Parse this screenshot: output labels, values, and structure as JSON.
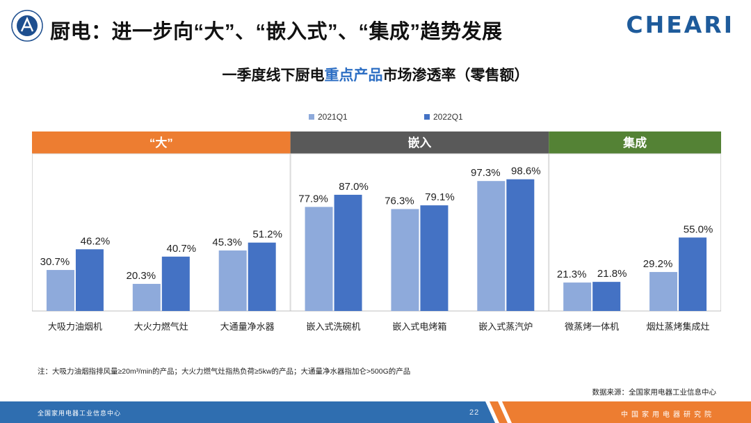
{
  "header": {
    "title": "厨电：进一步向“大”、“嵌入式”、“集成”趋势发展",
    "brand": "CHEARI"
  },
  "chart_title": {
    "part1": "一季度线下厨电",
    "highlight": "重点产品",
    "part2": "市场渗透率（零售额）"
  },
  "colors": {
    "series_2021": "#8eaadb",
    "series_2022": "#4472c4",
    "group_big": "#ed7d31",
    "group_embed": "#595959",
    "group_integrated": "#548235",
    "title_highlight": "#2e6fc4",
    "footer_blue": "#2f6eb0",
    "footer_orange": "#ed7d31"
  },
  "chart_data": {
    "type": "bar",
    "title": "一季度线下厨电重点产品市场渗透率（零售额）",
    "ylim": [
      0,
      100
    ],
    "legend_position": "top-center",
    "groups": [
      {
        "name": "“大”",
        "categories": [
          "大吸力油烟机",
          "大火力燃气灶",
          "大通量净水器"
        ]
      },
      {
        "name": "嵌入",
        "categories": [
          "嵌入式洗碗机",
          "嵌入式电烤箱",
          "嵌入式蒸汽炉"
        ]
      },
      {
        "name": "集成",
        "categories": [
          "微蒸烤一体机",
          "烟灶蒸烤集成灶"
        ]
      }
    ],
    "categories": [
      "大吸力油烟机",
      "大火力燃气灶",
      "大通量净水器",
      "嵌入式洗碗机",
      "嵌入式电烤箱",
      "嵌入式蒸汽炉",
      "微蒸烤一体机",
      "烟灶蒸烤集成灶"
    ],
    "series": [
      {
        "name": "2021Q1",
        "values": [
          30.7,
          20.3,
          45.3,
          77.9,
          76.3,
          97.3,
          21.3,
          29.2
        ]
      },
      {
        "name": "2022Q1",
        "values": [
          46.2,
          40.7,
          51.2,
          87.0,
          79.1,
          98.6,
          21.8,
          55.0
        ]
      }
    ],
    "value_format": "%"
  },
  "note": "注：大吸力油烟指排风量≥20m³/min的产品；大火力燃气灶指热负荷≥5kw的产品；大通量净水器指加仑>500G的产品",
  "source": "数据来源：全国家用电器工业信息中心",
  "footer": {
    "left": "全国家用电器工业信息中心",
    "page": "22",
    "right": "中国家用电器研究院"
  }
}
